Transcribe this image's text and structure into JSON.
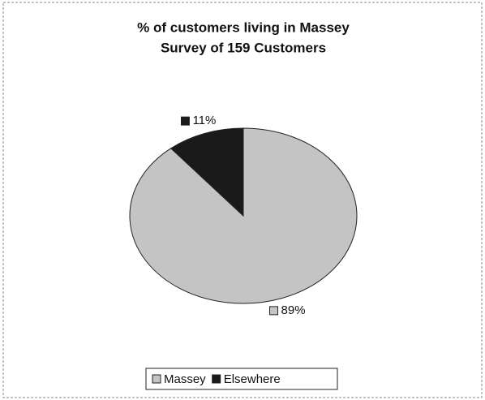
{
  "chart_data": {
    "type": "pie",
    "title": "% of customers living in Massey",
    "subtitle": "Survey of 159 Customers",
    "categories": [
      "Massey",
      "Elsewhere"
    ],
    "values": [
      89,
      11
    ],
    "value_labels": [
      "89%",
      "11%"
    ],
    "colors": [
      "#c4c4c4",
      "#1a1a1a"
    ],
    "legend": "bottom"
  }
}
